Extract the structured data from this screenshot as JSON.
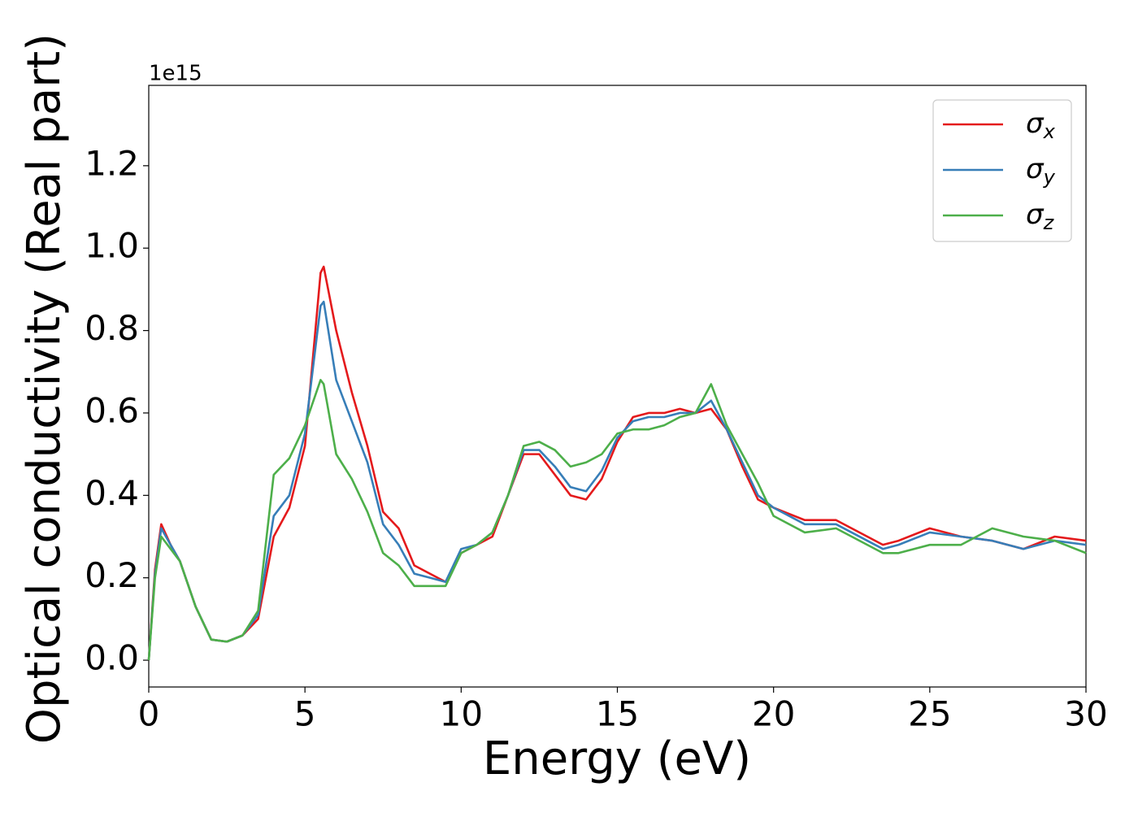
{
  "chart_data": {
    "type": "line",
    "xlabel": "Energy (eV)",
    "ylabel": "Optical conductivity (Real part)",
    "y_offset_label": "1e15",
    "x": [
      0,
      0.2,
      0.4,
      0.7,
      1,
      1.5,
      2,
      2.5,
      3,
      3.5,
      4,
      4.5,
      5,
      5.5,
      5.6,
      6,
      6.5,
      7,
      7.5,
      8,
      8.5,
      9,
      9.5,
      10,
      10.5,
      11,
      11.5,
      12,
      12.5,
      13,
      13.5,
      14,
      14.5,
      15,
      15.5,
      16,
      16.5,
      17,
      17.5,
      18,
      18.5,
      19,
      19.5,
      20,
      21,
      22,
      23,
      23.5,
      24,
      25,
      26,
      27,
      28,
      29,
      30
    ],
    "series": [
      {
        "name": "σx",
        "color": "#e41a1c",
        "values": [
          0,
          0.22,
          0.33,
          0.28,
          0.24,
          0.13,
          0.05,
          0.045,
          0.06,
          0.1,
          0.3,
          0.37,
          0.52,
          0.94,
          0.955,
          0.8,
          0.65,
          0.52,
          0.36,
          0.32,
          0.23,
          0.21,
          0.19,
          0.26,
          0.28,
          0.3,
          0.4,
          0.5,
          0.5,
          0.45,
          0.4,
          0.39,
          0.44,
          0.53,
          0.59,
          0.6,
          0.6,
          0.61,
          0.6,
          0.61,
          0.56,
          0.47,
          0.39,
          0.37,
          0.34,
          0.34,
          0.3,
          0.28,
          0.29,
          0.32,
          0.3,
          0.29,
          0.27,
          0.3,
          0.29
        ]
      },
      {
        "name": "σy",
        "color": "#377eb8",
        "values": [
          0,
          0.21,
          0.32,
          0.28,
          0.24,
          0.13,
          0.05,
          0.045,
          0.06,
          0.11,
          0.35,
          0.4,
          0.55,
          0.86,
          0.87,
          0.68,
          0.58,
          0.48,
          0.33,
          0.28,
          0.21,
          0.2,
          0.19,
          0.27,
          0.28,
          0.31,
          0.4,
          0.51,
          0.51,
          0.47,
          0.42,
          0.41,
          0.46,
          0.54,
          0.58,
          0.59,
          0.59,
          0.6,
          0.6,
          0.63,
          0.56,
          0.48,
          0.4,
          0.37,
          0.33,
          0.33,
          0.29,
          0.27,
          0.28,
          0.31,
          0.3,
          0.29,
          0.27,
          0.29,
          0.28
        ]
      },
      {
        "name": "σz",
        "color": "#4daf4a",
        "values": [
          0,
          0.2,
          0.3,
          0.27,
          0.24,
          0.13,
          0.05,
          0.045,
          0.06,
          0.12,
          0.45,
          0.49,
          0.57,
          0.68,
          0.67,
          0.5,
          0.44,
          0.36,
          0.26,
          0.23,
          0.18,
          0.18,
          0.18,
          0.26,
          0.28,
          0.31,
          0.4,
          0.52,
          0.53,
          0.51,
          0.47,
          0.48,
          0.5,
          0.55,
          0.56,
          0.56,
          0.57,
          0.59,
          0.6,
          0.67,
          0.57,
          0.5,
          0.43,
          0.35,
          0.31,
          0.32,
          0.28,
          0.26,
          0.26,
          0.28,
          0.28,
          0.32,
          0.3,
          0.29,
          0.26
        ]
      }
    ],
    "xlim": [
      0,
      30
    ],
    "xticks": [
      0,
      5,
      10,
      15,
      20,
      25,
      30
    ],
    "ylim": [
      -0.065,
      1.395
    ],
    "yticks": [
      {
        "value": 0,
        "label": "0.0"
      },
      {
        "value": 0.2,
        "label": "0.2"
      },
      {
        "value": 0.4,
        "label": "0.4"
      },
      {
        "value": 0.6,
        "label": "0.6"
      },
      {
        "value": 0.8,
        "label": "0.8"
      },
      {
        "value": 1.0,
        "label": "1.0"
      },
      {
        "value": 1.2,
        "label": "1.2"
      }
    ],
    "legend": "upper right"
  }
}
